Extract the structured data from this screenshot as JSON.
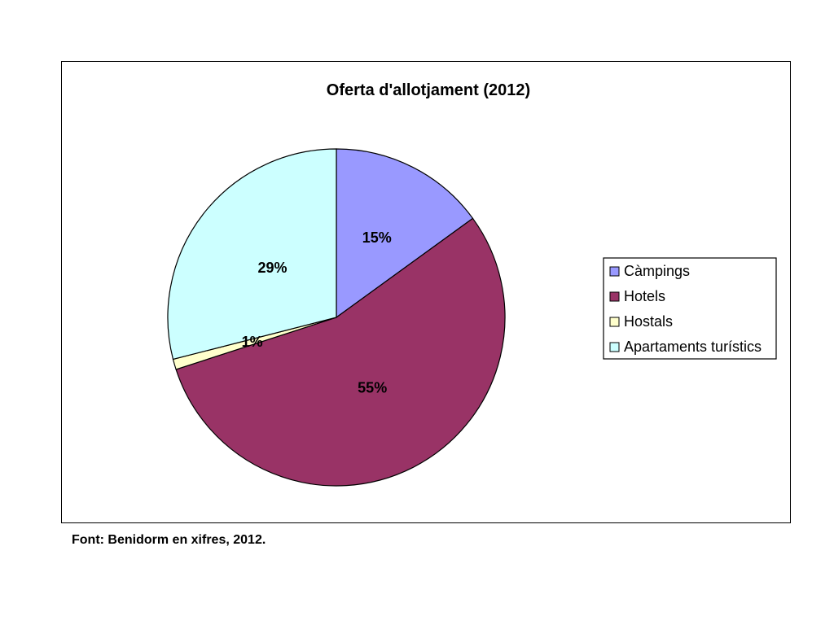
{
  "chart_data": {
    "type": "pie",
    "title": "Oferta d'allotjament (2012)",
    "slices": [
      {
        "label": "Càmpings",
        "value": 15,
        "display": "15%",
        "color": "#9999ff"
      },
      {
        "label": "Hotels",
        "value": 55,
        "display": "55%",
        "color": "#993366"
      },
      {
        "label": "Hostals",
        "value": 1,
        "display": "1%",
        "color": "#ffffcc"
      },
      {
        "label": "Apartaments turístics",
        "value": 29,
        "display": "29%",
        "color": "#ccffff"
      }
    ],
    "legend_position": "right",
    "start_angle": "12 o'clock",
    "direction": "clockwise"
  },
  "footer": {
    "source": "Font: Benidorm en xifres, 2012."
  }
}
